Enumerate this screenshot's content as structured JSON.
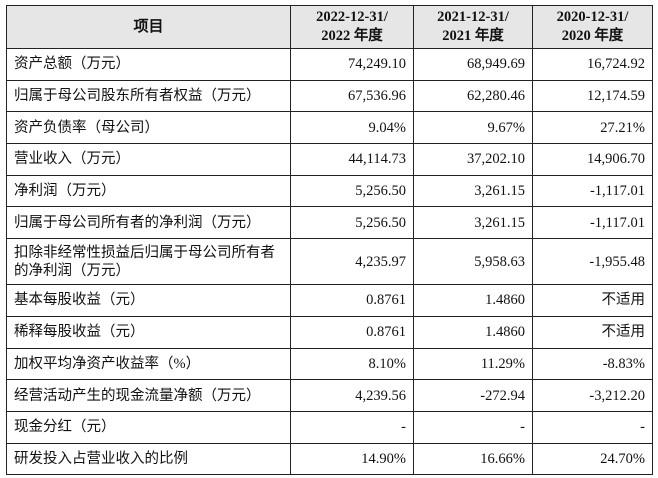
{
  "table": {
    "headers": {
      "item": "项目",
      "col1": [
        "2022-12-31/",
        "2022 年度"
      ],
      "col2": [
        "2021-12-31/",
        "2021 年度"
      ],
      "col3": [
        "2020-12-31/",
        "2020 年度"
      ]
    },
    "rows": [
      {
        "label": "资产总额（万元）",
        "values": [
          "74,249.10",
          "68,949.69",
          "16,724.92"
        ]
      },
      {
        "label": "归属于母公司股东所有者权益（万元）",
        "values": [
          "67,536.96",
          "62,280.46",
          "12,174.59"
        ]
      },
      {
        "label": "资产负债率（母公司）",
        "values": [
          "9.04%",
          "9.67%",
          "27.21%"
        ]
      },
      {
        "label": "营业收入（万元）",
        "values": [
          "44,114.73",
          "37,202.10",
          "14,906.70"
        ]
      },
      {
        "label": "净利润（万元）",
        "values": [
          "5,256.50",
          "3,261.15",
          "-1,117.01"
        ]
      },
      {
        "label": "归属于母公司所有者的净利润（万元）",
        "values": [
          "5,256.50",
          "3,261.15",
          "-1,117.01"
        ]
      },
      {
        "label": "扣除非经常性损益后归属于母公司所有者的净利润（万元）",
        "values": [
          "4,235.97",
          "5,958.63",
          "-1,955.48"
        ]
      },
      {
        "label": "基本每股收益（元）",
        "values": [
          "0.8761",
          "1.4860",
          "不适用"
        ]
      },
      {
        "label": "稀释每股收益（元）",
        "values": [
          "0.8761",
          "1.4860",
          "不适用"
        ]
      },
      {
        "label": "加权平均净资产收益率（%）",
        "values": [
          "8.10%",
          "11.29%",
          "-8.83%"
        ]
      },
      {
        "label": "经营活动产生的现金流量净额（万元）",
        "values": [
          "4,239.56",
          "-272.94",
          "-3,212.20"
        ]
      },
      {
        "label": "现金分红（元）",
        "values": [
          "-",
          "-",
          "-"
        ]
      },
      {
        "label": "研发投入占营业收入的比例",
        "values": [
          "14.90%",
          "16.66%",
          "24.70%"
        ]
      }
    ]
  }
}
